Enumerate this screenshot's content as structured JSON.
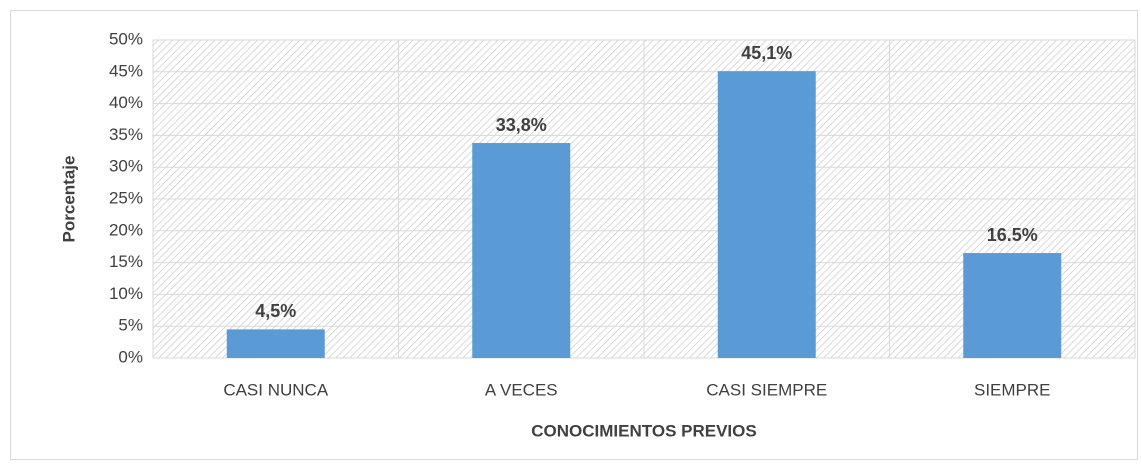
{
  "chart_data": {
    "type": "bar",
    "x_label": "CONOCIMIENTOS PREVIOS",
    "y_label": "Porcentaje",
    "categories": [
      "CASI NUNCA",
      "A VECES",
      "CASI SIEMPRE",
      "SIEMPRE"
    ],
    "values": [
      4.5,
      33.8,
      45.1,
      16.5
    ],
    "value_labels": [
      "4,5%",
      "33,8%",
      "45,1%",
      "16.5%"
    ],
    "color": "#5b9bd5",
    "ylim": [
      0,
      50
    ],
    "yticks": [
      {
        "value": 0,
        "label": "0%"
      },
      {
        "value": 5,
        "label": "5%"
      },
      {
        "value": 10,
        "label": "10%"
      },
      {
        "value": 15,
        "label": "15%"
      },
      {
        "value": 20,
        "label": "20%"
      },
      {
        "value": 25,
        "label": "25%"
      },
      {
        "value": 30,
        "label": "30%"
      },
      {
        "value": 35,
        "label": "35%"
      },
      {
        "value": 40,
        "label": "40%"
      },
      {
        "value": 45,
        "label": "45%"
      },
      {
        "value": 50,
        "label": "50%"
      }
    ],
    "grid": true
  }
}
